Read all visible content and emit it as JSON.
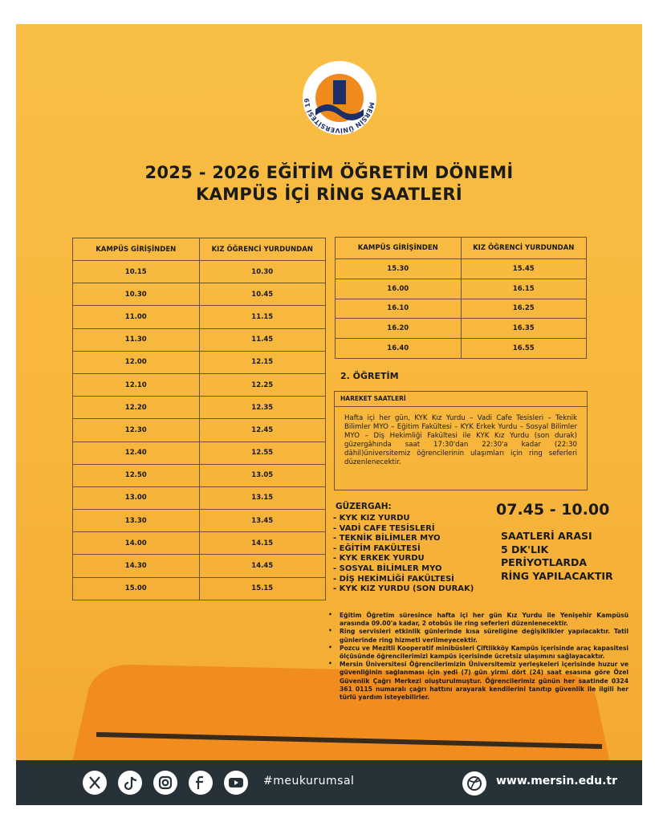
{
  "logo": {
    "text": "MERSİN ÜNİVERSİTESİ 1992"
  },
  "header": {
    "title_line1": "2025 - 2026 EĞİTİM ÖĞRETİM DÖNEMİ",
    "title_line2": "KAMPÜS İÇİ RİNG SAATLERİ"
  },
  "table1": {
    "columns": [
      "KAMPÜS GİRİŞİNDEN",
      "KIZ ÖĞRENCİ YURDUNDAN"
    ],
    "rows": [
      [
        "10.15",
        "10.30"
      ],
      [
        "10.30",
        "10.45"
      ],
      [
        "11.00",
        "11.15"
      ],
      [
        "11.30",
        "11.45"
      ],
      [
        "12.00",
        "12.15"
      ],
      [
        "12.10",
        "12.25"
      ],
      [
        "12.20",
        "12.35"
      ],
      [
        "12.30",
        "12.45"
      ],
      [
        "12.40",
        "12.55"
      ],
      [
        "12.50",
        "13.05"
      ],
      [
        "13.00",
        "13.15"
      ],
      [
        "13.30",
        "13.45"
      ],
      [
        "14.00",
        "14.15"
      ],
      [
        "14.30",
        "14.45"
      ],
      [
        "15.00",
        "15.15"
      ]
    ]
  },
  "table2": {
    "columns": [
      "KAMPÜS GİRİŞİNDEN",
      "KIZ ÖĞRENCİ YURDUNDAN"
    ],
    "rows": [
      [
        "15.30",
        "15.45"
      ],
      [
        "16.00",
        "16.15"
      ],
      [
        "16.10",
        "16.25"
      ],
      [
        "16.20",
        "16.35"
      ],
      [
        "16.40",
        "16.55"
      ]
    ]
  },
  "second_shift": {
    "heading": "2. ÖĞRETİM",
    "box_title": "HAREKET SAATLERİ",
    "text": "Hafta içi her gün, KYK Kız Yurdu – Vadi Cafe Tesisleri – Teknik Bilimler MYO – Eğitim Fakültesi – KYK Erkek Yurdu – Sosyal Bilimler MYO – Diş Hekimliği Fakültesi ile KYK Kız Yurdu (son durak) güzergâhında saat 17:30'dan 22:30'a kadar (22:30 dâhil)üniversitemiz öğrencilerinin ulaşımları için ring seferleri düzenlenecektir."
  },
  "route": {
    "title": "GÜZERGAH:",
    "items": [
      "- KYK KIZ YURDU",
      "- VADİ CAFE TESİSLERİ",
      "- TEKNİK BİLİMLER MYO",
      "- EĞİTİM FAKÜLTESİ",
      "- KYK ERKEK YURDU",
      "- SOSYAL BİLİMLER MYO",
      "- DİŞ HEKİMLİĞİ FAKÜLTESİ",
      "- KYK KIZ YURDU (SON DURAK)"
    ]
  },
  "period": {
    "time": "07.45 - 10.00",
    "lines": [
      "SAATLERİ ARASI",
      "5 DK'LIK",
      "PERİYOTLARDA",
      "RİNG YAPILACAKTIR"
    ]
  },
  "notes": [
    "Eğitim Öğretim süresince hafta içi her gün Kız Yurdu ile Yenişehir Kampüsü arasında 09.00'a kadar, 2 otobüs ile ring seferleri düzenlenecektir.",
    "Ring servisleri etkinlik günlerinde kısa süreliğine değişiklikler yapılacaktır. Tatil günlerinde ring hizmeti verilmeyecektir.",
    "Pozcu ve Mezitli Kooperatif minibüsleri Çiftlikköy Kampüs içerisinde araç kapasitesi ölçüsünde öğrencilerimizi kampüs içerisinde ücretsiz ulaşımını sağlayacaktır.",
    "Mersin Üniversitesi Öğrencilerimizin Üniversitemiz yerleşkeleri içerisinde huzur ve güvenliğinin sağlanması için yedi (7) gün yirmi dört (24) saat esasına göre Özel Güvenlik Çağrı Merkezi oluşturulmuştur. Öğrencilerimiz günün her saatinde 0324 361 0115 numaralı çağrı hattını arayarak kendilerini tanıtıp güvenlik ile ilgili her türlü yardım isteyebilirler."
  ],
  "footer": {
    "hashtag": "#meukurumsal",
    "url": "www.mersin.edu.tr"
  }
}
